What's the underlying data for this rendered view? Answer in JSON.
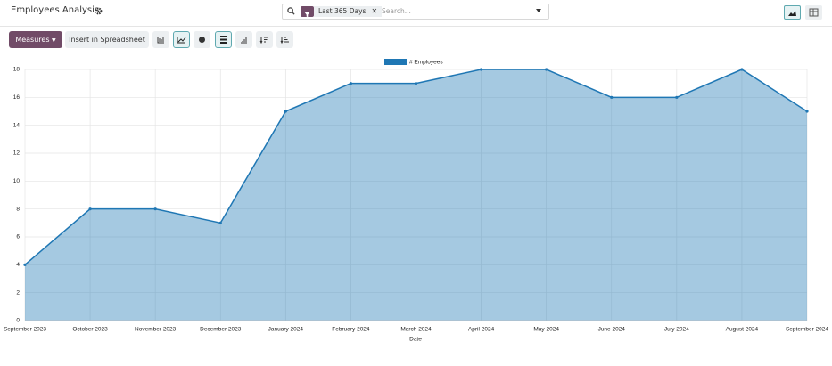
{
  "header": {
    "title": "Employees Analysis"
  },
  "search": {
    "facet": "Last 365 Days",
    "placeholder": "Search..."
  },
  "toolbar": {
    "measures": "Measures",
    "insert": "Insert in Spreadsheet"
  },
  "chart_data": {
    "type": "area",
    "categories": [
      "September 2023",
      "October 2023",
      "November 2023",
      "December 2023",
      "January 2024",
      "February 2024",
      "March 2024",
      "April 2024",
      "May 2024",
      "June 2024",
      "July 2024",
      "August 2024",
      "September 2024"
    ],
    "series": [
      {
        "name": "# Employees",
        "color": "#1f77b4",
        "values": [
          4,
          8,
          8,
          7,
          15,
          17,
          17,
          18,
          18,
          16,
          16,
          18,
          15
        ]
      }
    ],
    "xlabel": "Date",
    "ylim": [
      0,
      18
    ],
    "yticks": [
      0,
      2,
      4,
      6,
      8,
      10,
      12,
      14,
      16,
      18
    ],
    "grid": true,
    "legend": "top"
  }
}
